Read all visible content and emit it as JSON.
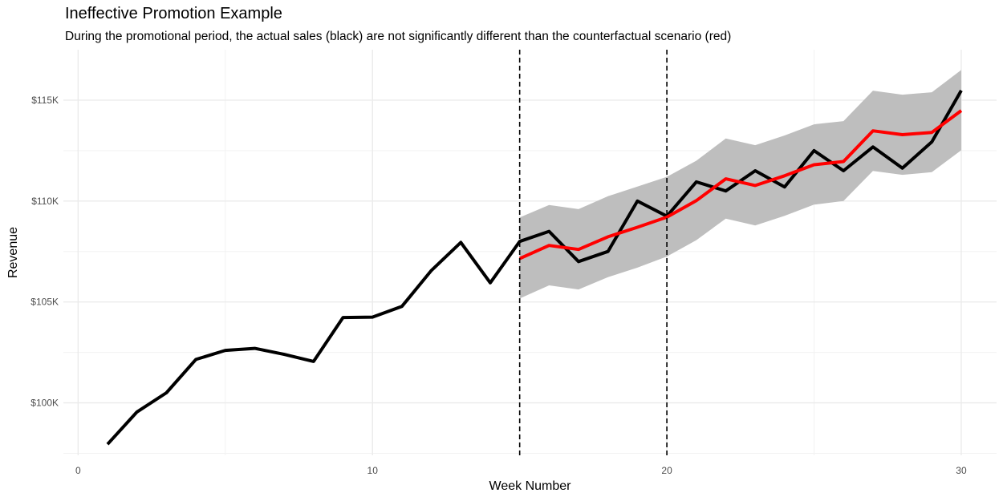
{
  "chart_data": {
    "type": "line",
    "title": "Ineffective Promotion Example",
    "subtitle": "During the promotional period, the actual sales (black) are not significantly different than the counterfactual scenario (red)",
    "xlabel": "Week Number",
    "ylabel": "Revenue",
    "xlim": [
      -0.5,
      31.2
    ],
    "ylim": [
      97400,
      117500
    ],
    "x_ticks": [
      0,
      10,
      20,
      30
    ],
    "x_tick_labels": [
      "0",
      "10",
      "20",
      "30"
    ],
    "y_ticks": [
      100000,
      105000,
      110000,
      115000
    ],
    "y_tick_labels": [
      "$100K",
      "$105K",
      "$110K",
      "$115K"
    ],
    "grid": true,
    "legend": "none",
    "vlines": [
      15,
      20
    ],
    "series": [
      {
        "color": "#000000",
        "x": [
          1,
          2,
          3,
          4,
          5,
          6,
          7,
          8,
          9,
          10,
          11,
          12,
          13,
          14,
          15,
          16,
          17,
          18,
          19,
          20,
          21,
          22,
          23,
          24,
          25,
          26,
          27,
          28,
          29,
          30
        ],
        "values": [
          97950,
          99550,
          100500,
          102150,
          102600,
          102700,
          102400,
          102050,
          104230,
          104250,
          104780,
          106560,
          107950,
          105950,
          108000,
          108500,
          107000,
          107500,
          110000,
          109250,
          110950,
          110500,
          111500,
          110700,
          112500,
          111500,
          112680,
          111630,
          112930,
          115480
        ]
      },
      {
        "color": "#ff0000",
        "x": [
          15,
          16,
          17,
          18,
          19,
          20,
          21,
          22,
          23,
          24,
          25,
          26,
          27,
          28,
          29,
          30
        ],
        "values": [
          107150,
          107800,
          107600,
          108230,
          108700,
          109200,
          110020,
          111100,
          110770,
          111250,
          111800,
          111960,
          113480,
          113290,
          113400,
          114480
        ]
      }
    ],
    "band": {
      "color": "#bebebe",
      "x": [
        15,
        16,
        17,
        18,
        19,
        20,
        21,
        22,
        23,
        24,
        25,
        26,
        27,
        28,
        29,
        30
      ],
      "lower": [
        105170,
        105820,
        105620,
        106230,
        106700,
        107250,
        108060,
        109130,
        108790,
        109270,
        109820,
        110000,
        111490,
        111300,
        111430,
        112520
      ],
      "upper": [
        109190,
        109800,
        109600,
        110240,
        110720,
        111200,
        112000,
        113100,
        112770,
        113250,
        113800,
        113960,
        115470,
        115270,
        115390,
        116500
      ]
    }
  }
}
